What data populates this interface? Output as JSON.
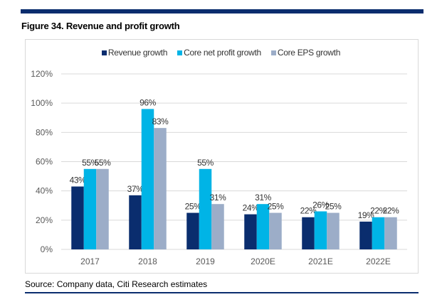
{
  "figure": {
    "title": "Figure 34. Revenue and profit growth",
    "source": "Source: Company data, Citi Research estimates"
  },
  "colors": {
    "brand_bar": "#0a2d6e",
    "revenue": "#0a2d6e",
    "net_profit": "#00b4e6",
    "eps": "#9cadc8"
  },
  "chart_data": {
    "type": "bar",
    "title": "Revenue and profit growth",
    "xlabel": "",
    "ylabel": "",
    "ylim": [
      0,
      120
    ],
    "yticks": [
      "0%",
      "20%",
      "40%",
      "60%",
      "80%",
      "100%",
      "120%"
    ],
    "ytick_values": [
      0,
      20,
      40,
      60,
      80,
      100,
      120
    ],
    "grid": true,
    "legend_position": "top-center",
    "categories": [
      "2017",
      "2018",
      "2019",
      "2020E",
      "2021E",
      "2022E"
    ],
    "series": [
      {
        "name": "Revenue growth",
        "values": [
          43,
          37,
          25,
          24,
          22,
          19
        ],
        "labels": [
          "43%",
          "37%",
          "25%",
          "24%",
          "22%",
          "19%"
        ]
      },
      {
        "name": "Core net profit growth",
        "values": [
          55,
          96,
          55,
          31,
          26,
          22
        ],
        "labels": [
          "55%",
          "96%",
          "55%",
          "31%",
          "26%",
          "22%"
        ]
      },
      {
        "name": "Core EPS growth",
        "values": [
          55,
          83,
          31,
          25,
          25,
          22
        ],
        "labels": [
          "55%",
          "83%",
          "31%",
          "25%",
          "25%",
          "22%"
        ]
      }
    ]
  }
}
